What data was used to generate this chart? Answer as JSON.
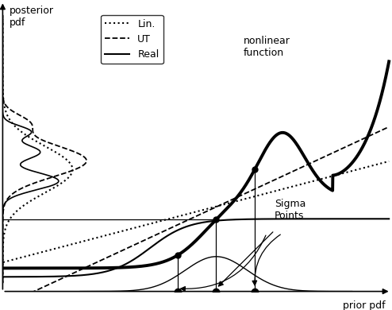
{
  "xlabel": "prior pdf",
  "ylabel": "posterior\npdf",
  "background_color": "#ffffff",
  "legend_entries": [
    "Lin.",
    "UT",
    "Real"
  ],
  "sigma_points_label": "Sigma\nPoints",
  "nonlinear_label": "nonlinear\nfunction",
  "xlim": [
    0,
    10
  ],
  "ylim": [
    0,
    10
  ]
}
